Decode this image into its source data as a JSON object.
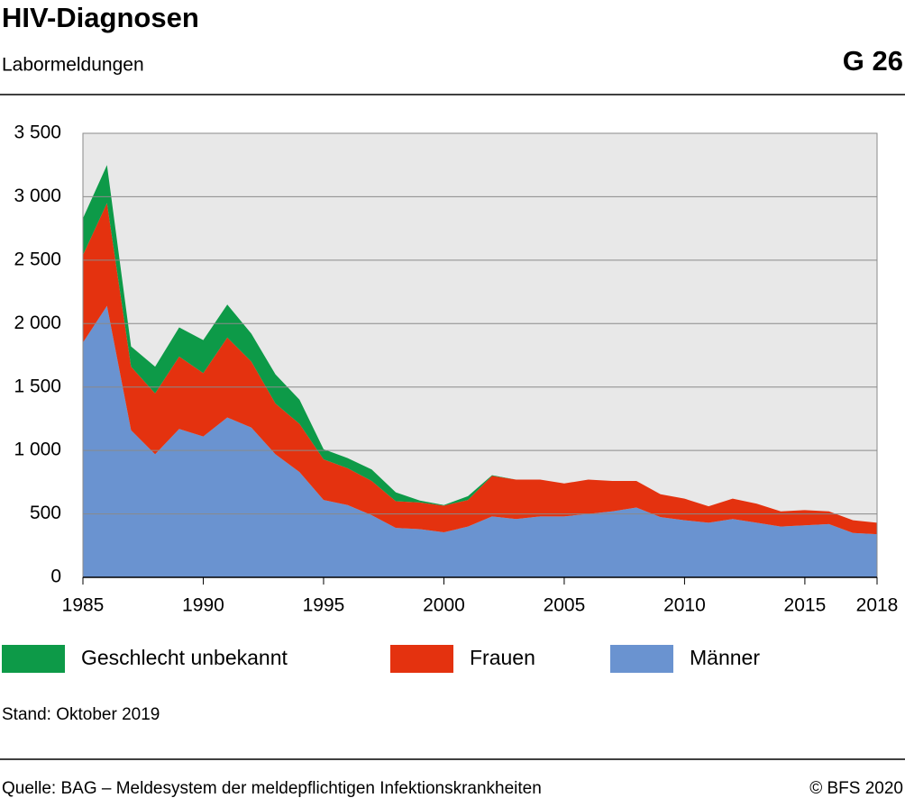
{
  "chart_data": {
    "type": "stacked-area",
    "title": "HIV-Diagnosen",
    "subtitle": "Labormeldungen",
    "chart_id": "G 26",
    "note": "Stand: Oktober 2019",
    "source": "Quelle: BAG – Meldesystem der meldepflichtigen Infektionskrankheiten",
    "copyright": "© BFS 2020",
    "x": [
      1985,
      1986,
      1987,
      1988,
      1989,
      1990,
      1991,
      1992,
      1993,
      1994,
      1995,
      1996,
      1997,
      1998,
      1999,
      2000,
      2001,
      2002,
      2003,
      2004,
      2005,
      2006,
      2007,
      2008,
      2009,
      2010,
      2011,
      2012,
      2013,
      2014,
      2015,
      2016,
      2017,
      2018
    ],
    "series": [
      {
        "name": "Geschlecht unbekannt",
        "color": "#0d9a48",
        "values": [
          290,
          300,
          160,
          210,
          230,
          260,
          260,
          220,
          230,
          190,
          80,
          80,
          90,
          70,
          15,
          5,
          30,
          5,
          0,
          0,
          0,
          0,
          0,
          0,
          0,
          0,
          0,
          0,
          0,
          0,
          0,
          0,
          0,
          0
        ]
      },
      {
        "name": "Frauen",
        "color": "#e4320f",
        "values": [
          690,
          810,
          500,
          480,
          570,
          500,
          630,
          520,
          400,
          380,
          320,
          290,
          270,
          210,
          210,
          210,
          210,
          320,
          310,
          290,
          260,
          270,
          240,
          210,
          180,
          170,
          130,
          160,
          150,
          120,
          120,
          100,
          100,
          90
        ]
      },
      {
        "name": "Männer",
        "color": "#6a93d0",
        "values": [
          1850,
          2140,
          1160,
          970,
          1170,
          1110,
          1260,
          1180,
          970,
          830,
          610,
          570,
          490,
          390,
          380,
          355,
          400,
          480,
          460,
          480,
          480,
          500,
          520,
          550,
          475,
          450,
          430,
          460,
          430,
          400,
          410,
          420,
          350,
          340
        ]
      }
    ],
    "xlim": [
      1985,
      2018
    ],
    "xticks": [
      1985,
      1990,
      1995,
      2000,
      2005,
      2010,
      2015,
      2018
    ],
    "ylim": [
      0,
      3500
    ],
    "yticks": [
      0,
      {
        "value": 500,
        "label": "500"
      },
      {
        "value": 1000,
        "label": "1 000"
      },
      {
        "value": 1500,
        "label": "1 500"
      },
      {
        "value": 2000,
        "label": "2 000"
      },
      {
        "value": 2500,
        "label": "2 500"
      },
      {
        "value": 3000,
        "label": "3 000"
      },
      {
        "value": 3500,
        "label": "3 500"
      }
    ],
    "grid": true
  }
}
